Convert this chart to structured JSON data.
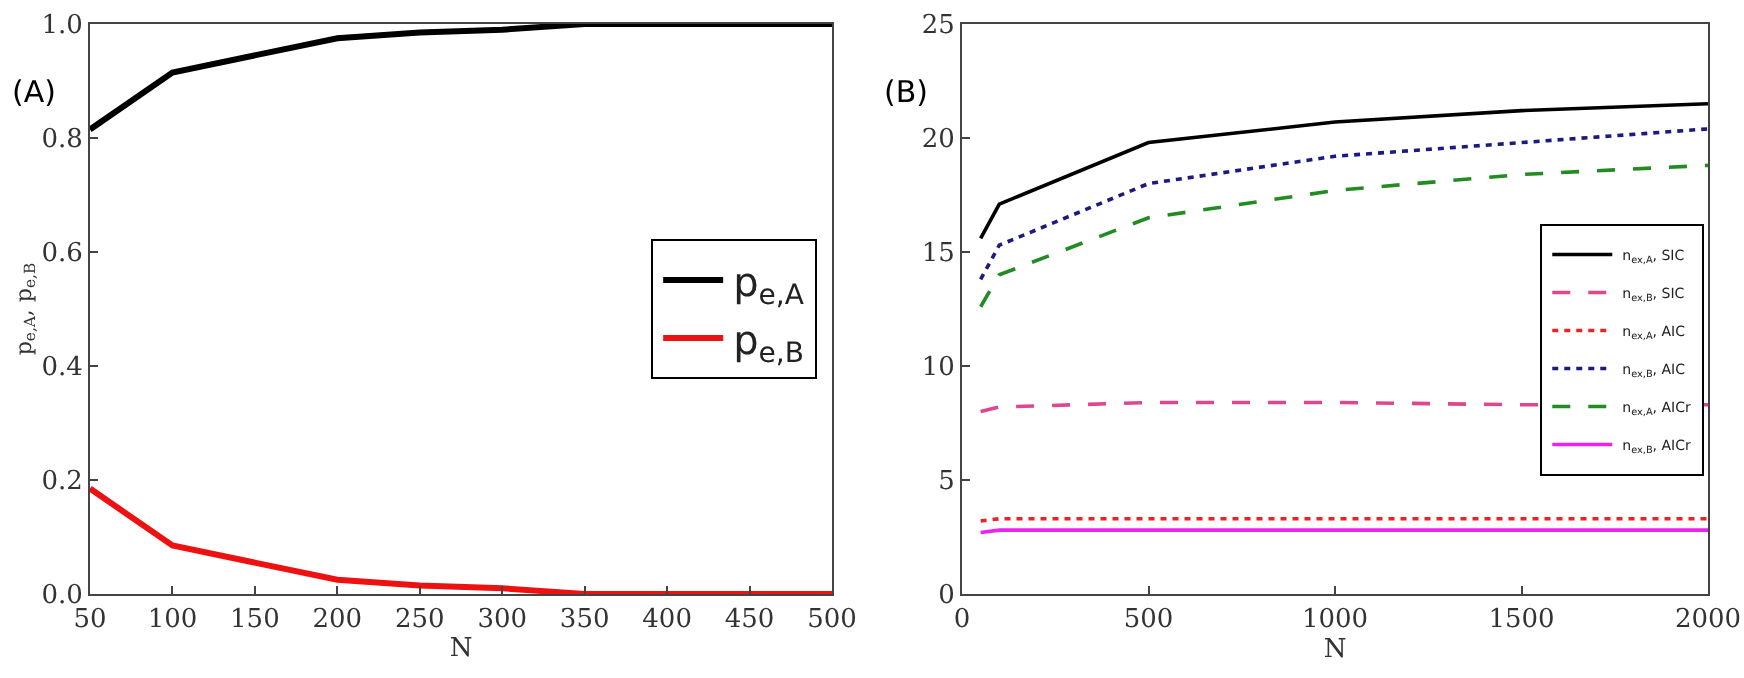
{
  "chart_data": [
    {
      "type": "line",
      "xlabel": "N",
      "ylabel": "p$_{e,A}$, p$_{e,B}$",
      "annotations": [
        "(A)"
      ],
      "x": [
        50,
        100,
        200,
        250,
        300,
        350,
        400,
        450,
        500
      ],
      "series": [
        {
          "name": "p$_{e,A}$",
          "color": "#000000",
          "line_style": "solid",
          "values": [
            0.815,
            0.915,
            0.975,
            0.985,
            0.99,
            1.0,
            1.0,
            1.0,
            1.0
          ]
        },
        {
          "name": "p$_{e,B}$",
          "color": "#ee1111",
          "line_style": "solid",
          "values": [
            0.185,
            0.085,
            0.025,
            0.015,
            0.01,
            0.0,
            0.0,
            0.0,
            0.0
          ]
        }
      ],
      "xlim": [
        50,
        500
      ],
      "xticks": [
        50,
        100,
        150,
        200,
        250,
        300,
        350,
        400,
        450,
        500
      ],
      "ylim": [
        0,
        1
      ],
      "yticks": [
        {
          "value": 0,
          "label": "0.0"
        },
        0.2,
        0.4,
        0.6,
        0.8,
        {
          "value": 1,
          "label": "1.0"
        }
      ],
      "grid": false,
      "legend": "right",
      "marker": "none"
    },
    {
      "type": "line",
      "xlabel": "N",
      "annotations": [
        "(B)"
      ],
      "x": [
        50,
        100,
        500,
        1000,
        1500,
        2000
      ],
      "series": [
        {
          "name": "n$_{ex,A}$, SIC",
          "color": "#000000",
          "line_style": "solid",
          "values": [
            15.6,
            17.1,
            19.8,
            20.7,
            21.2,
            21.5
          ]
        },
        {
          "name": "n$_{ex,B}$, SIC",
          "color": "#e0468c",
          "line_style": "dashed",
          "values": [
            8.0,
            8.2,
            8.4,
            8.4,
            8.3,
            8.3
          ]
        },
        {
          "name": "n$_{ex,A}$, AIC",
          "color": "#ee2222",
          "line_style": "dotted",
          "values": [
            3.2,
            3.3,
            3.3,
            3.3,
            3.3,
            3.3
          ]
        },
        {
          "name": "n$_{ex,B}$, AIC",
          "color": "#1a1a80",
          "line_style": "dotted",
          "values": [
            13.8,
            15.3,
            18.0,
            19.2,
            19.8,
            20.4
          ]
        },
        {
          "name": "n$_{ex,A}$, AICr",
          "color": "#228b22",
          "line_style": "dashed",
          "values": [
            12.6,
            14.0,
            16.5,
            17.7,
            18.4,
            18.8
          ]
        },
        {
          "name": "n$_{ex,B}$, AICr",
          "color": "#ee22ee",
          "line_style": "solid",
          "values": [
            2.7,
            2.8,
            2.8,
            2.8,
            2.8,
            2.8
          ]
        }
      ],
      "xlim": [
        0,
        2000
      ],
      "xticks": [
        0,
        500,
        1000,
        1500,
        2000
      ],
      "ylim": [
        0,
        25
      ],
      "yticks": [
        0,
        5,
        10,
        15,
        20,
        25
      ],
      "grid": false,
      "legend": "right",
      "marker": "none"
    }
  ]
}
